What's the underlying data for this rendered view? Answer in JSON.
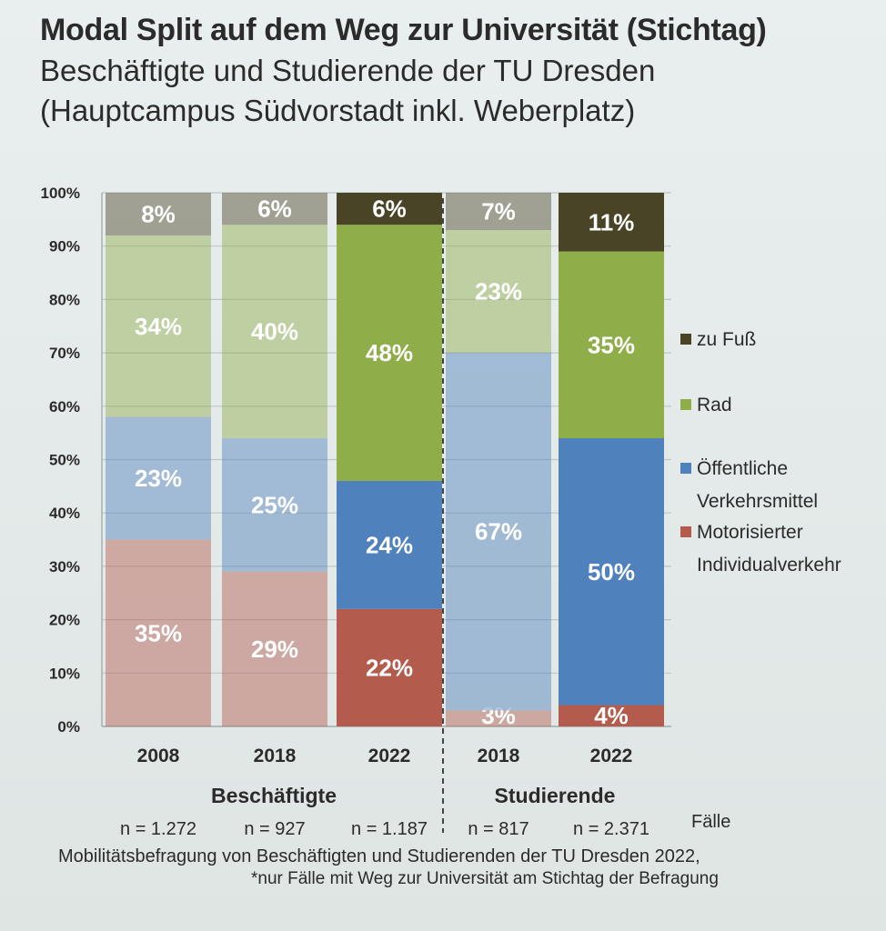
{
  "title": "Modal Split auf dem Weg zur Universität (Stichtag)",
  "subtitle_line1": "Beschäftigte und Studierende der TU Dresden",
  "subtitle_line2": "(Hauptcampus Südvorstadt inkl. Weberplatz)",
  "footer": {
    "line1": "Mobilitätsbefragung von Beschäftigten und Studierenden der TU Dresden 2022,",
    "line2": "*nur Fälle mit Weg zur Universität am Stichtag der Befragung",
    "faelle": "Fälle"
  },
  "colors": {
    "zu_fuss": "#4a4426",
    "rad": "#8fae4a",
    "oev": "#4f81bd",
    "miv": "#b35b4d",
    "grid": "#bfc6c6",
    "group_divider": "#444444"
  },
  "chart_data": {
    "type": "bar",
    "stacked": true,
    "ylim": [
      0,
      100
    ],
    "yticks": [
      "0%",
      "10%",
      "20%",
      "30%",
      "40%",
      "50%",
      "60%",
      "70%",
      "80%",
      "90%",
      "100%"
    ],
    "categories": [
      "2008",
      "2018",
      "2022",
      "2018",
      "2022"
    ],
    "groups": [
      {
        "label": "Beschäftigte",
        "categories": [
          0,
          1,
          2
        ]
      },
      {
        "label": "Studierende",
        "categories": [
          3,
          4
        ]
      }
    ],
    "n_labels": [
      "n = 1.272",
      "n = 927",
      "n = 1.187",
      "n = 817",
      "n = 2.371"
    ],
    "faded": [
      true,
      true,
      false,
      true,
      false
    ],
    "series": [
      {
        "name": "Motorisierter Individualverkehr",
        "key": "miv",
        "values": [
          35,
          29,
          22,
          3,
          4
        ],
        "labels": [
          "35%",
          "29%",
          "22%",
          "3%",
          "4%"
        ]
      },
      {
        "name": "Öffentliche Verkehrsmittel",
        "key": "oev",
        "values": [
          23,
          25,
          24,
          67,
          50
        ],
        "labels": [
          "23%",
          "25%",
          "24%",
          "67%",
          "50%"
        ]
      },
      {
        "name": "Rad",
        "key": "rad",
        "values": [
          34,
          40,
          48,
          23,
          35
        ],
        "labels": [
          "34%",
          "40%",
          "48%",
          "23%",
          "35%"
        ]
      },
      {
        "name": "zu Fuß",
        "key": "zu_fuss",
        "values": [
          8,
          6,
          6,
          7,
          11
        ],
        "labels": [
          "8%",
          "6%",
          "6%",
          "7%",
          "11%"
        ]
      }
    ],
    "legend": [
      {
        "key": "zu_fuss",
        "lines": [
          "zu Fuß"
        ]
      },
      {
        "key": "rad",
        "lines": [
          "Rad"
        ]
      },
      {
        "key": "oev",
        "lines": [
          "Öffentliche",
          "Verkehrsmittel"
        ]
      },
      {
        "key": "miv",
        "lines": [
          "Motorisierter",
          "Individualverkehr"
        ]
      }
    ],
    "legend_position": "right"
  }
}
